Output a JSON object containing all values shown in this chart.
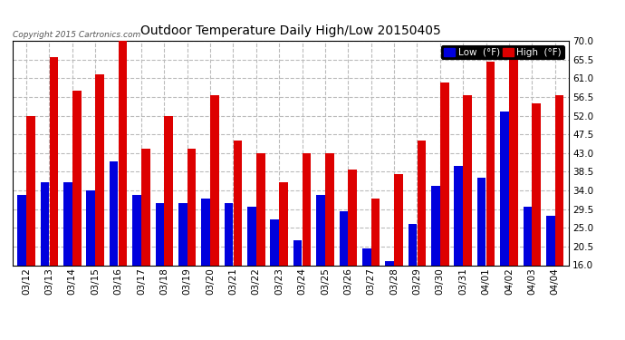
{
  "title": "Outdoor Temperature Daily High/Low 20150405",
  "copyright_text": "Copyright 2015 Cartronics.com",
  "legend_low": "Low  (°F)",
  "legend_high": "High  (°F)",
  "low_color": "#0000dd",
  "high_color": "#dd0000",
  "background_color": "#ffffff",
  "plot_bg_color": "#ffffff",
  "grid_color": "#bbbbbb",
  "ylim": [
    16.0,
    70.0
  ],
  "yticks": [
    16.0,
    20.5,
    25.0,
    29.5,
    34.0,
    38.5,
    43.0,
    47.5,
    52.0,
    56.5,
    61.0,
    65.5,
    70.0
  ],
  "dates": [
    "03/12",
    "03/13",
    "03/14",
    "03/15",
    "03/16",
    "03/17",
    "03/18",
    "03/19",
    "03/20",
    "03/21",
    "03/22",
    "03/23",
    "03/24",
    "03/25",
    "03/26",
    "03/27",
    "03/28",
    "03/29",
    "03/30",
    "03/31",
    "04/01",
    "04/02",
    "04/03",
    "04/04"
  ],
  "high_values": [
    52.0,
    66.0,
    58.0,
    62.0,
    70.0,
    44.0,
    52.0,
    44.0,
    57.0,
    46.0,
    43.0,
    36.0,
    43.0,
    43.0,
    39.0,
    32.0,
    38.0,
    46.0,
    60.0,
    57.0,
    65.0,
    66.0,
    55.0,
    57.0
  ],
  "low_values": [
    33.0,
    36.0,
    36.0,
    34.0,
    41.0,
    33.0,
    31.0,
    31.0,
    32.0,
    31.0,
    30.0,
    27.0,
    22.0,
    33.0,
    29.0,
    20.0,
    17.0,
    26.0,
    35.0,
    40.0,
    37.0,
    53.0,
    30.0,
    28.0
  ],
  "ybase": 16.0
}
